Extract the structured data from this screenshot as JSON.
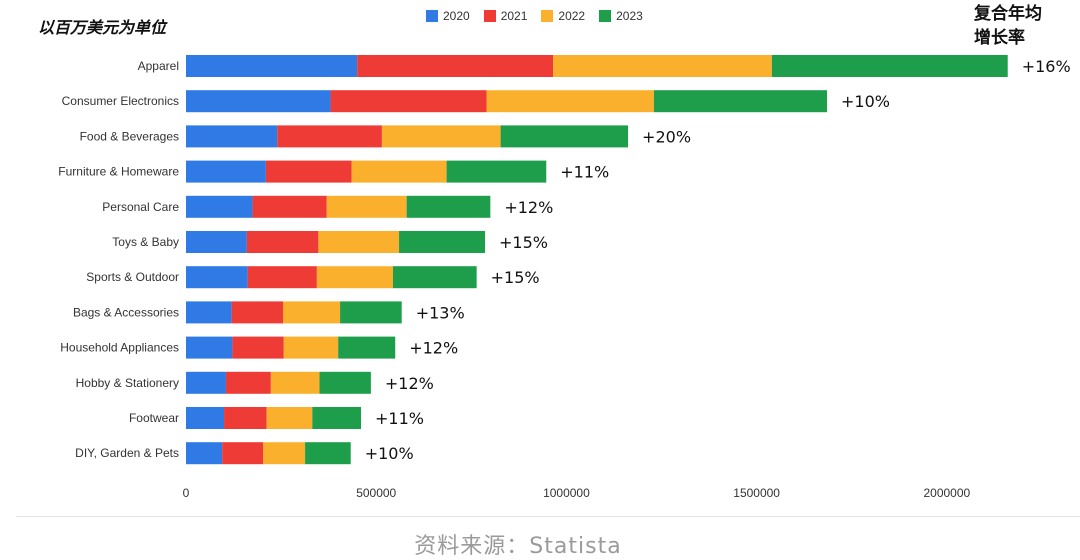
{
  "chart_data": {
    "type": "bar",
    "orientation": "horizontal",
    "stacked": true,
    "unit_label": "以百万美元为单位",
    "cagr_title_line1": "复合年均",
    "cagr_title_line2": "增长率",
    "categories": [
      "Apparel",
      "Consumer Electronics",
      "Food & Beverages",
      "Furniture & Homeware",
      "Personal Care",
      "Toys & Baby",
      "Sports & Outdoor",
      "Bags & Accessories",
      "Household Appliances",
      "Hobby & Stationery",
      "Footwear",
      "DIY, Garden & Pets"
    ],
    "series": [
      {
        "name": "2020",
        "color": "#2f7ae5",
        "values": [
          450000,
          380000,
          240000,
          210000,
          175000,
          160000,
          162000,
          120000,
          122000,
          105000,
          100000,
          95000
        ]
      },
      {
        "name": "2021",
        "color": "#ef3b36",
        "values": [
          515000,
          410000,
          275000,
          225000,
          195000,
          188000,
          182000,
          135000,
          135000,
          118000,
          112000,
          108000
        ]
      },
      {
        "name": "2022",
        "color": "#fbb02d",
        "values": [
          575000,
          440000,
          312000,
          250000,
          210000,
          212000,
          200000,
          150000,
          143000,
          128000,
          120000,
          110000
        ]
      },
      {
        "name": "2023",
        "color": "#1e9e4a",
        "values": [
          620000,
          455000,
          335000,
          262000,
          220000,
          226000,
          220000,
          162000,
          150000,
          135000,
          128000,
          120000
        ]
      }
    ],
    "cagr": [
      "+16%",
      "+10%",
      "+20%",
      "+11%",
      "+12%",
      "+15%",
      "+15%",
      "+13%",
      "+12%",
      "+12%",
      "+11%",
      "+10%"
    ],
    "x_ticks": [
      "0",
      "500000",
      "1000000",
      "1500000",
      "2000000"
    ],
    "xlim": [
      0,
      2350000
    ],
    "legend_position": "top-center",
    "grid": false
  },
  "source": "资料来源：Statista"
}
